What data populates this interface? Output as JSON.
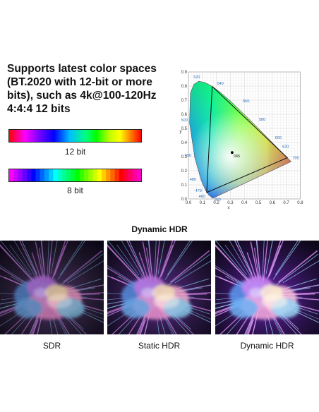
{
  "headline": "Supports latest color spaces (BT.2020 with 12-bit or more bits), such as 4k@100-120Hz 4:4:4 12 bits",
  "bars": [
    {
      "label": "12 bit"
    },
    {
      "label": "8 bit"
    }
  ],
  "gamut_chart": {
    "xlabel": "x",
    "ylabel": "y",
    "x_ticks": [
      "0.0",
      "0.1",
      "0.2",
      "0.3",
      "0.4",
      "0.5",
      "0.6",
      "0.7",
      "0.8"
    ],
    "y_ticks": [
      "0.0",
      "0.1",
      "0.2",
      "0.3",
      "0.4",
      "0.5",
      "0.6",
      "0.7",
      "0.8",
      "0.9"
    ],
    "wavelength_labels": [
      "380",
      "460",
      "470",
      "480",
      "490",
      "500",
      "520",
      "540",
      "560",
      "580",
      "600",
      "620",
      "700"
    ],
    "whitepoint_label": "D65",
    "label_color": "#2a6ebb"
  },
  "hdr_section": {
    "title": "Dynamic HDR",
    "captions": [
      "SDR",
      "Static HDR",
      "Dynamic HDR"
    ]
  }
}
